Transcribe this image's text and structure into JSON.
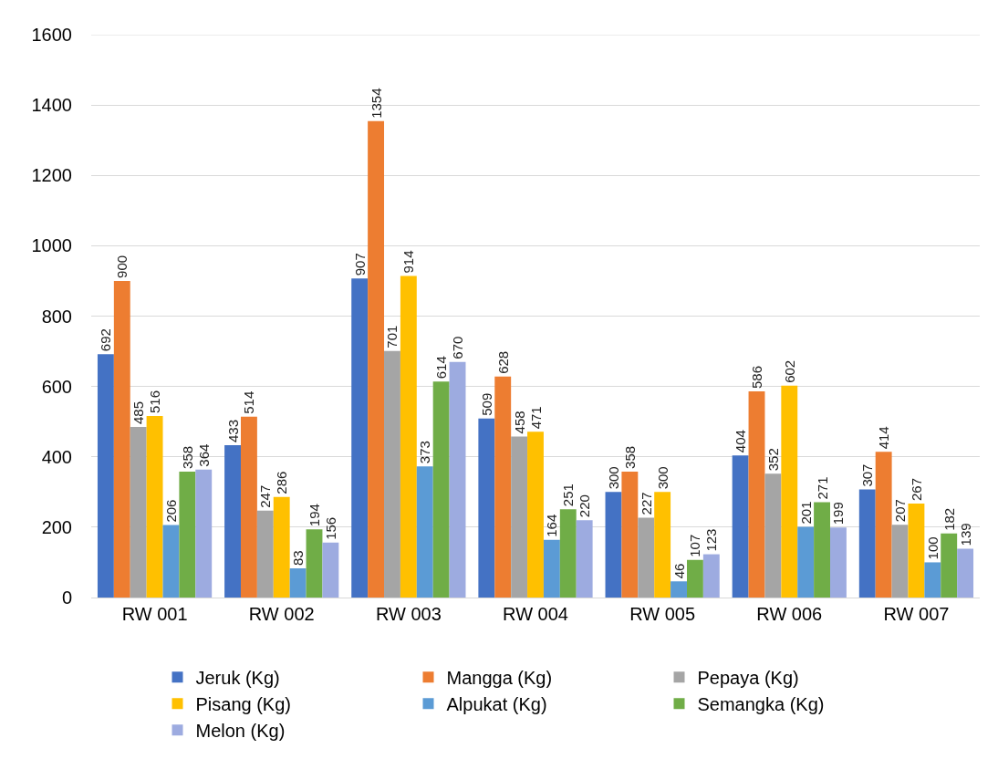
{
  "chart_data": {
    "type": "bar",
    "categories": [
      "RW 001",
      "RW 002",
      "RW 003",
      "RW 004",
      "RW 005",
      "RW 006",
      "RW 007"
    ],
    "series": [
      {
        "name": "Jeruk (Kg)",
        "color": "#4472c4",
        "values": [
          692,
          433,
          907,
          509,
          300,
          404,
          307
        ]
      },
      {
        "name": "Mangga (Kg)",
        "color": "#ed7d31",
        "values": [
          900,
          514,
          1354,
          628,
          358,
          586,
          414
        ]
      },
      {
        "name": "Pepaya (Kg)",
        "color": "#a5a5a5",
        "values": [
          485,
          247,
          701,
          458,
          227,
          352,
          207
        ]
      },
      {
        "name": "Pisang (Kg)",
        "color": "#ffc000",
        "values": [
          516,
          286,
          914,
          471,
          300,
          602,
          267
        ]
      },
      {
        "name": "Alpukat (Kg)",
        "color": "#5b9bd5",
        "values": [
          206,
          83,
          373,
          164,
          46,
          201,
          100
        ]
      },
      {
        "name": "Semangka (Kg)",
        "color": "#70ad47",
        "values": [
          358,
          194,
          614,
          251,
          107,
          271,
          182
        ]
      },
      {
        "name": "Melon (Kg)",
        "color": "#9dabe0",
        "values": [
          364,
          156,
          670,
          220,
          123,
          199,
          139
        ]
      }
    ],
    "ylim": [
      0,
      1600
    ],
    "yticks": [
      0,
      200,
      400,
      600,
      800,
      1000,
      1200,
      1400,
      1600
    ],
    "grid": "y",
    "legend": "bottom",
    "data_labels": true
  }
}
